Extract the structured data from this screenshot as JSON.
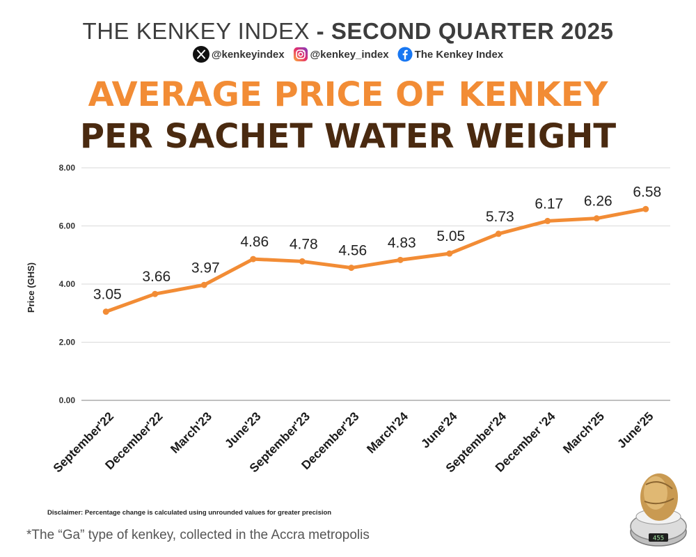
{
  "header": {
    "title_light": "THE KENKEY INDEX",
    "title_sep": " - ",
    "title_bold": "SECOND QUARTER 2025"
  },
  "socials": [
    {
      "icon": "x-icon",
      "label": "@kenkeyindex"
    },
    {
      "icon": "instagram-icon",
      "label": "@kenkey_index"
    },
    {
      "icon": "facebook-icon",
      "label": "The Kenkey Index"
    }
  ],
  "headline": {
    "line1": "AVERAGE PRICE OF KENKEY",
    "line2": "PER SACHET WATER WEIGHT"
  },
  "colors": {
    "accent": "#f28c35",
    "dark_brown": "#4a2a10",
    "grid": "#d9d9d9"
  },
  "chart_data": {
    "type": "line",
    "title": "AVERAGE PRICE OF KENKEY PER SACHET WATER WEIGHT",
    "xlabel": "",
    "ylabel": "Price (GHS)",
    "ylim": [
      0,
      8
    ],
    "yticks": [
      "0.00",
      "2.00",
      "4.00",
      "6.00",
      "8.00"
    ],
    "grid": true,
    "categories": [
      "September'22",
      "December'22",
      "March'23",
      "June'23",
      "September'23",
      "December'23",
      "March'24",
      "June'24",
      "September'24",
      "December '24",
      "March'25",
      "June'25"
    ],
    "series": [
      {
        "name": "Price",
        "values": [
          3.05,
          3.66,
          3.97,
          4.86,
          4.78,
          4.56,
          4.83,
          5.05,
          5.73,
          6.17,
          6.26,
          6.58
        ]
      }
    ],
    "data_labels": [
      "3.05",
      "3.66",
      "3.97",
      "4.86",
      "4.78",
      "4.56",
      "4.83",
      "5.05",
      "5.73",
      "6.17",
      "6.26",
      "6.58"
    ]
  },
  "disclaimer": "Disclaimer: Percentage change is calculated using unrounded values for greater precision",
  "footnote": "*The “Ga” type of kenkey, collected in the Accra metropolis",
  "scale_display": "455"
}
